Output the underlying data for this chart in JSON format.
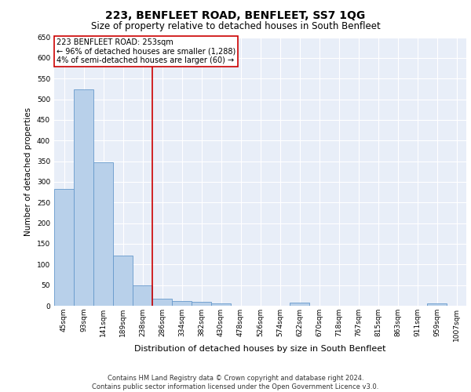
{
  "title": "223, BENFLEET ROAD, BENFLEET, SS7 1QG",
  "subtitle": "Size of property relative to detached houses in South Benfleet",
  "xlabel": "Distribution of detached houses by size in South Benfleet",
  "ylabel": "Number of detached properties",
  "bar_color": "#b8d0ea",
  "bar_edge_color": "#6699cc",
  "background_color": "#e8eef8",
  "grid_color": "#ffffff",
  "categories": [
    "45sqm",
    "93sqm",
    "141sqm",
    "189sqm",
    "238sqm",
    "286sqm",
    "334sqm",
    "382sqm",
    "430sqm",
    "478sqm",
    "526sqm",
    "574sqm",
    "622sqm",
    "670sqm",
    "718sqm",
    "767sqm",
    "815sqm",
    "863sqm",
    "911sqm",
    "959sqm",
    "1007sqm"
  ],
  "values": [
    283,
    524,
    347,
    121,
    49,
    17,
    11,
    10,
    6,
    0,
    0,
    0,
    7,
    0,
    0,
    0,
    0,
    0,
    0,
    6,
    0
  ],
  "ylim": [
    0,
    650
  ],
  "yticks": [
    0,
    50,
    100,
    150,
    200,
    250,
    300,
    350,
    400,
    450,
    500,
    550,
    600,
    650
  ],
  "vline_x": 4.5,
  "vline_color": "#cc0000",
  "annotation_text": "223 BENFLEET ROAD: 253sqm\n← 96% of detached houses are smaller (1,288)\n4% of semi-detached houses are larger (60) →",
  "annotation_box_color": "#ffffff",
  "annotation_box_edge": "#cc0000",
  "footer": "Contains HM Land Registry data © Crown copyright and database right 2024.\nContains public sector information licensed under the Open Government Licence v3.0.",
  "title_fontsize": 10,
  "subtitle_fontsize": 8.5,
  "xlabel_fontsize": 8,
  "ylabel_fontsize": 7.5,
  "tick_fontsize": 6.5,
  "annotation_fontsize": 7,
  "footer_fontsize": 6
}
